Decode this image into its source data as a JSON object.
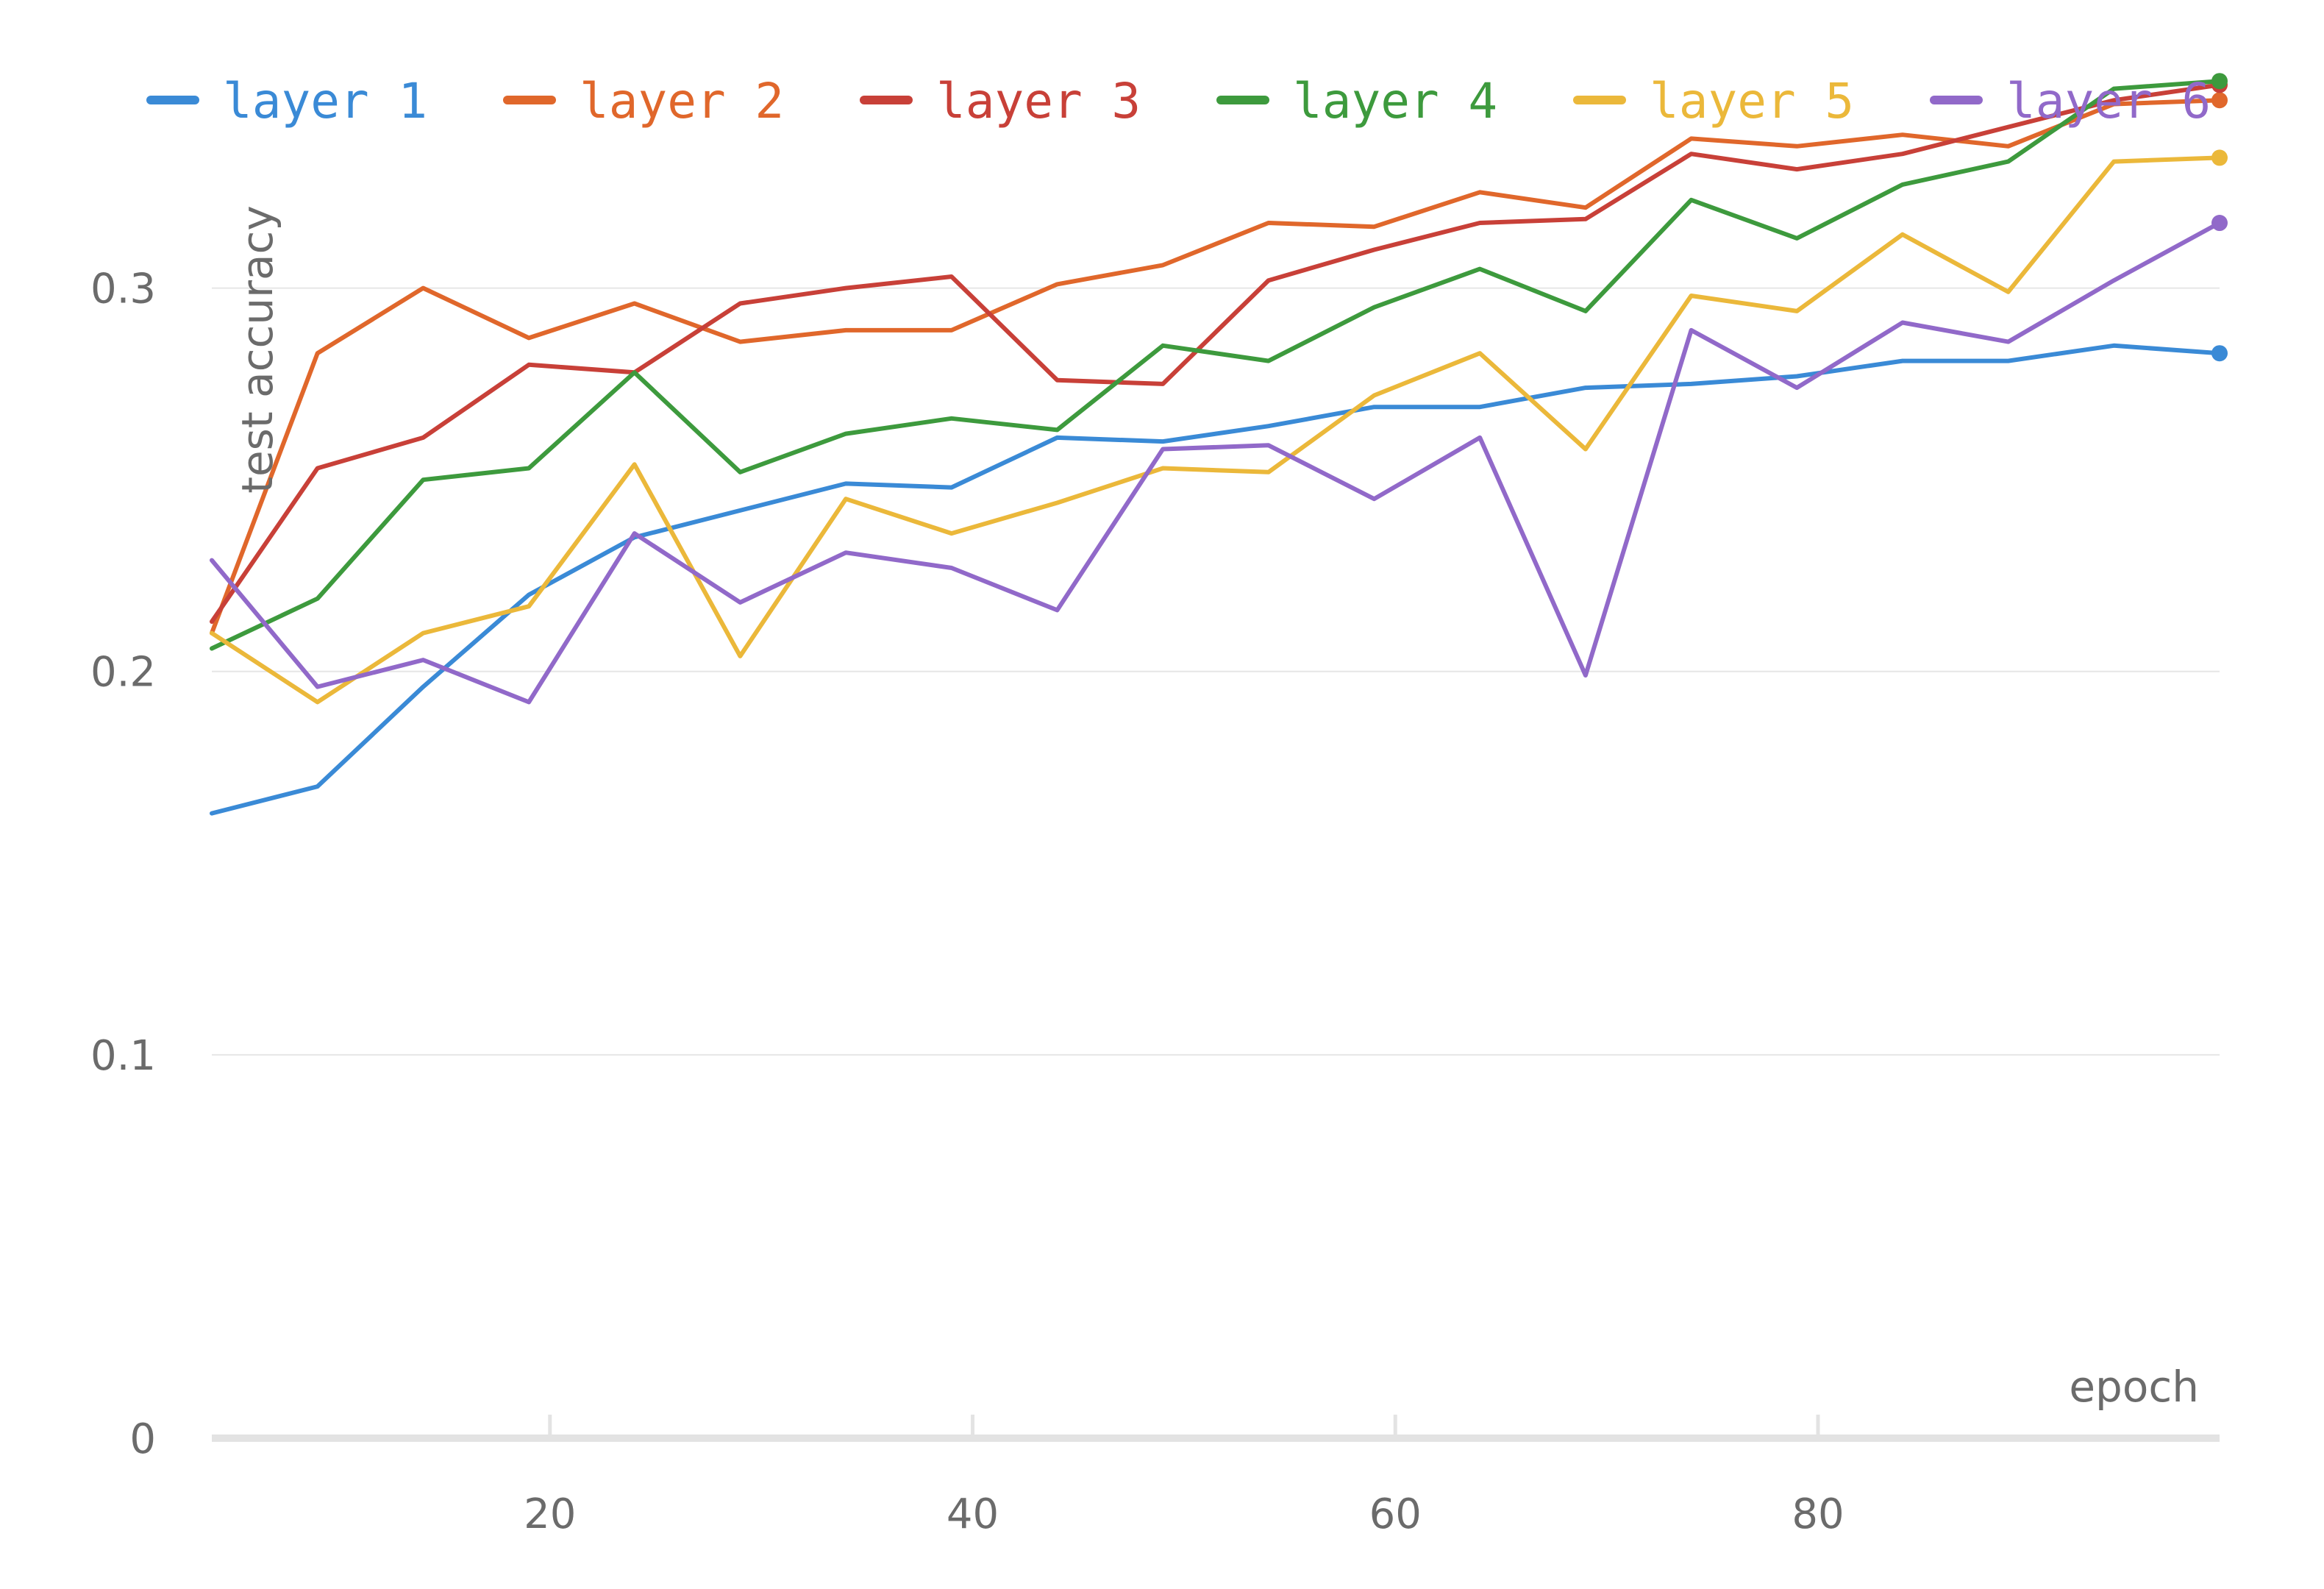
{
  "chart_data": {
    "type": "line",
    "title": "",
    "xlabel": "epoch",
    "ylabel": "test accuracy",
    "xlim": [
      4,
      99
    ],
    "ylim": [
      0,
      0.355
    ],
    "x_ticks": [
      20,
      40,
      60,
      80
    ],
    "x_tick_labels": [
      "20",
      "40",
      "60",
      "80"
    ],
    "y_ticks": [
      0,
      0.1,
      0.2,
      0.3
    ],
    "y_tick_labels": [
      "0",
      "0.1",
      "0.2",
      "0.3"
    ],
    "grid": "horizontal",
    "legend_position": "top",
    "x": [
      4,
      9,
      14,
      19,
      24,
      29,
      34,
      39,
      44,
      49,
      54,
      59,
      64,
      69,
      74,
      79,
      84,
      89,
      94,
      99
    ],
    "series": [
      {
        "name": "layer 1",
        "color": "#3a8ad6",
        "values": [
          0.163,
          0.17,
          0.196,
          0.22,
          0.235,
          0.242,
          0.249,
          0.248,
          0.261,
          0.26,
          0.264,
          0.269,
          0.269,
          0.274,
          0.275,
          0.277,
          0.281,
          0.281,
          0.285,
          0.283
        ]
      },
      {
        "name": "layer 2",
        "color": "#e0672b",
        "values": [
          0.21,
          0.283,
          0.3,
          0.287,
          0.296,
          0.286,
          0.289,
          0.289,
          0.301,
          0.306,
          0.317,
          0.316,
          0.325,
          0.321,
          0.339,
          0.337,
          0.34,
          0.337,
          0.348,
          0.349
        ]
      },
      {
        "name": "layer 3",
        "color": "#c84038",
        "values": [
          0.213,
          0.253,
          0.261,
          0.28,
          0.278,
          0.296,
          0.3,
          0.303,
          0.276,
          0.275,
          0.302,
          0.31,
          0.317,
          0.318,
          0.335,
          0.331,
          0.335,
          0.342,
          0.349,
          0.353
        ]
      },
      {
        "name": "layer 4",
        "color": "#3d9a3d",
        "values": [
          0.206,
          0.219,
          0.25,
          0.253,
          0.278,
          0.252,
          0.262,
          0.266,
          0.263,
          0.285,
          0.281,
          0.295,
          0.305,
          0.294,
          0.323,
          0.313,
          0.327,
          0.333,
          0.352,
          0.354
        ]
      },
      {
        "name": "layer 5",
        "color": "#ebb83a",
        "values": [
          0.21,
          0.192,
          0.21,
          0.217,
          0.254,
          0.204,
          0.245,
          0.236,
          0.244,
          0.253,
          0.252,
          0.272,
          0.283,
          0.258,
          0.298,
          0.294,
          0.314,
          0.299,
          0.333,
          0.334
        ]
      },
      {
        "name": "layer 6",
        "color": "#9169c9",
        "values": [
          0.229,
          0.196,
          0.203,
          0.192,
          0.236,
          0.218,
          0.231,
          0.227,
          0.216,
          0.258,
          0.259,
          0.245,
          0.261,
          0.199,
          0.289,
          0.274,
          0.291,
          0.286,
          0.302,
          0.317
        ]
      }
    ]
  }
}
